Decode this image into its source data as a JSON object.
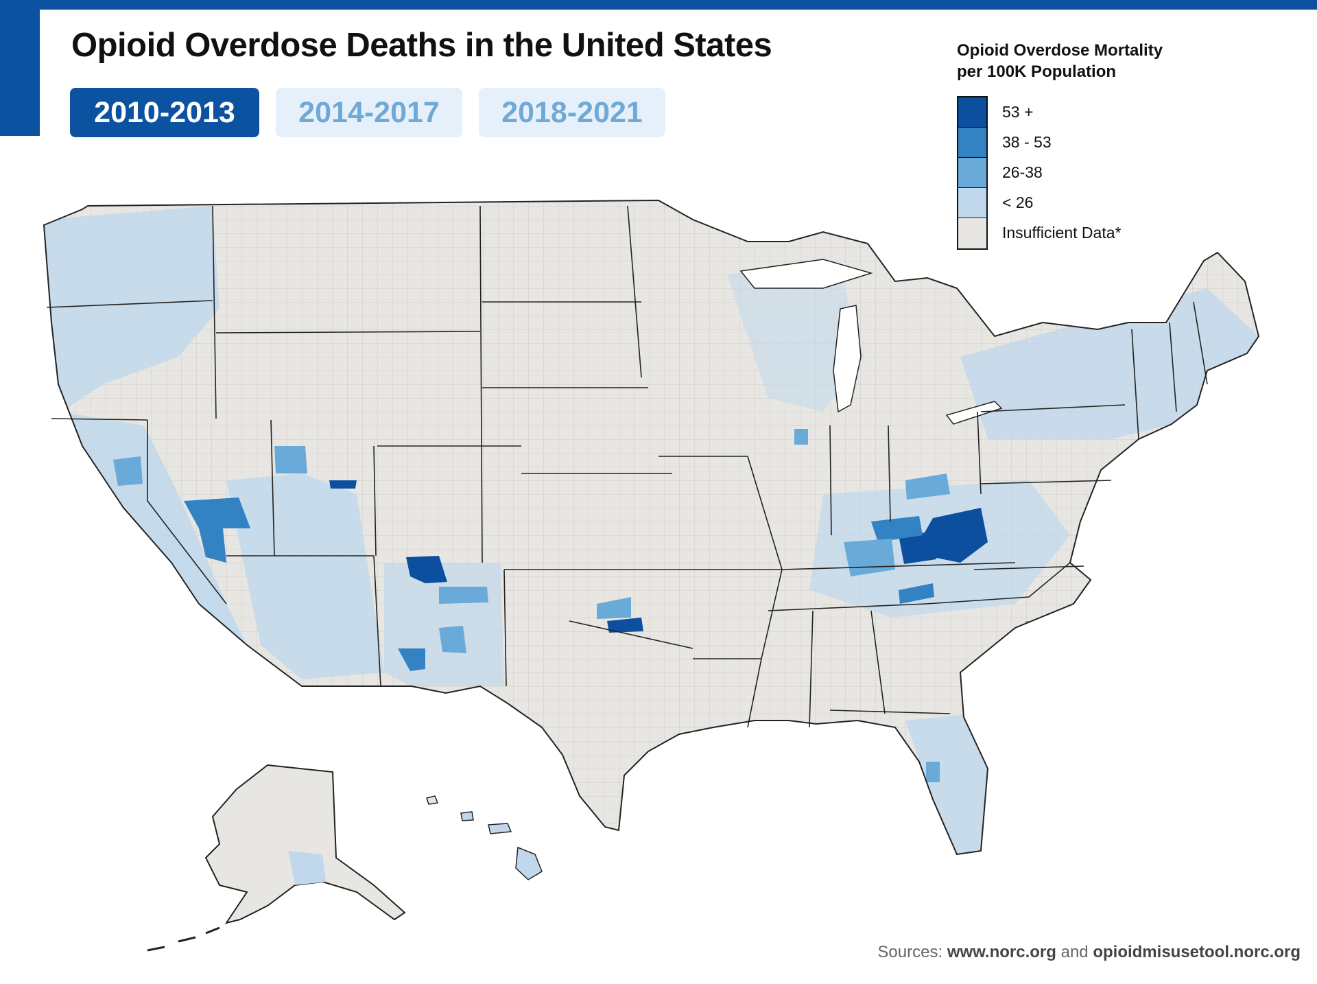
{
  "header": {
    "title": "Opioid Overdose Deaths in the United States"
  },
  "tabs": [
    {
      "label": "2010-2013",
      "active": true
    },
    {
      "label": "2014-2017",
      "active": false
    },
    {
      "label": "2018-2021",
      "active": false
    }
  ],
  "legend": {
    "title_line1": "Opioid Overdose Mortality",
    "title_line2": "per 100K Population",
    "items": [
      {
        "label": "53 +",
        "color": "#0b4f9e"
      },
      {
        "label": "38 - 53",
        "color": "#3282c4"
      },
      {
        "label": "26-38",
        "color": "#6aaad9"
      },
      {
        "label": "< 26",
        "color": "#c1d8ec"
      },
      {
        "label": "Insufficient Data*",
        "color": "#e8e6e2"
      }
    ]
  },
  "sources": {
    "prefix": "Sources: ",
    "site1": "www.norc.org",
    "joiner": " and ",
    "site2": "opioidmisusetool.norc.org"
  },
  "colors": {
    "brand": "#0b53a0",
    "insufficient": "#e8e6e2",
    "low": "#c1d8ec",
    "mid": "#6aaad9",
    "high": "#3282c4",
    "top": "#0b4f9e"
  }
}
